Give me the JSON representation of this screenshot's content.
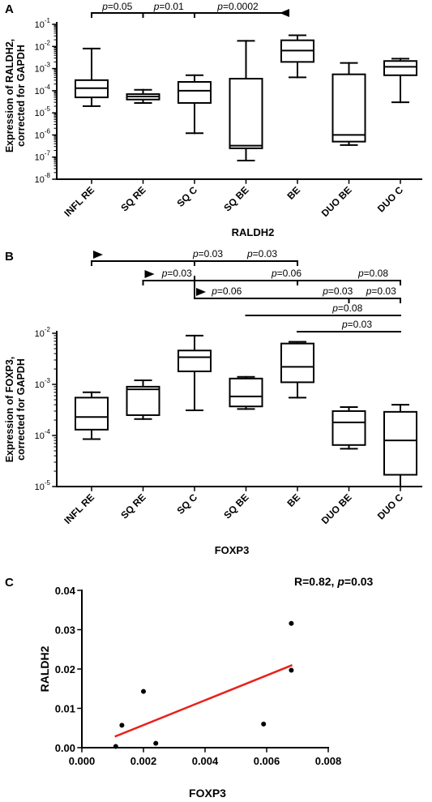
{
  "chart_data": [
    {
      "panel": "A",
      "type": "box",
      "xlabel": "RALDH2",
      "ylabel_line1": "Expression of RALDH2,",
      "ylabel_line2": "corrected for GAPDH",
      "yscale": "log",
      "ylim_exp": [
        -8,
        -1
      ],
      "yticks": [
        {
          "base": "10",
          "exp": "-8"
        },
        {
          "base": "10",
          "exp": "-7"
        },
        {
          "base": "10",
          "exp": "-6"
        },
        {
          "base": "10",
          "exp": "-5"
        },
        {
          "base": "10",
          "exp": "-4"
        },
        {
          "base": "10",
          "exp": "-3"
        },
        {
          "base": "10",
          "exp": "-2"
        },
        {
          "base": "10",
          "exp": "-1"
        }
      ],
      "categories": [
        "INFL RE",
        "SQ RE",
        "SQ C",
        "SQ BE",
        "BE",
        "DUO BE",
        "DUO C"
      ],
      "boxes": [
        {
          "min": 2e-05,
          "q1": 5e-05,
          "median": 0.00013,
          "q3": 0.0003,
          "max": 0.008
        },
        {
          "min": 2.8e-05,
          "q1": 4e-05,
          "median": 5.5e-05,
          "q3": 7e-05,
          "max": 0.00011
        },
        {
          "min": 1.2e-06,
          "q1": 2.8e-05,
          "median": 0.0001,
          "q3": 0.00025,
          "max": 0.0005
        },
        {
          "min": 7e-08,
          "q1": 2.5e-07,
          "median": 3.3e-07,
          "q3": 0.00035,
          "max": 0.018
        },
        {
          "min": 0.0004,
          "q1": 0.002,
          "median": 0.0065,
          "q3": 0.019,
          "max": 0.032
        },
        {
          "min": 3.5e-07,
          "q1": 5e-07,
          "median": 1e-06,
          "q3": 0.00055,
          "max": 0.0018
        },
        {
          "min": 3e-05,
          "q1": 0.0005,
          "median": 0.0012,
          "q3": 0.0022,
          "max": 0.0028
        }
      ],
      "significance": [
        {
          "from": 0,
          "to": 1,
          "label": "=0.05",
          "arrow": false
        },
        {
          "from": 1,
          "to": 2,
          "label": "=0.01",
          "arrow": false
        },
        {
          "from": 2,
          "to": 4,
          "label": "=0.0002",
          "arrow": false
        },
        {
          "from": 4,
          "to": 6,
          "label": "",
          "arrow": true
        }
      ]
    },
    {
      "panel": "B",
      "type": "box",
      "xlabel": "FOXP3",
      "ylabel_line1": "Expression of FOXP3,",
      "ylabel_line2": "corrected for GAPDH",
      "yscale": "log",
      "ylim_exp": [
        -5,
        -2
      ],
      "yticks": [
        {
          "base": "10",
          "exp": "-5"
        },
        {
          "base": "10",
          "exp": "-4"
        },
        {
          "base": "10",
          "exp": "-3"
        },
        {
          "base": "10",
          "exp": "-2"
        }
      ],
      "categories": [
        "INFL RE",
        "SQ RE",
        "SQ C",
        "SQ BE",
        "BE",
        "DUO BE",
        "DUO C"
      ],
      "boxes": [
        {
          "min": 8.5e-05,
          "q1": 0.00013,
          "median": 0.00023,
          "q3": 0.00055,
          "max": 0.0007
        },
        {
          "min": 0.00021,
          "q1": 0.00025,
          "median": 0.0008,
          "q3": 0.0009,
          "max": 0.0012
        },
        {
          "min": 0.00031,
          "q1": 0.0018,
          "median": 0.0034,
          "q3": 0.0046,
          "max": 0.009
        },
        {
          "min": 0.00033,
          "q1": 0.00037,
          "median": 0.00058,
          "q3": 0.0013,
          "max": 0.0014
        },
        {
          "min": 0.00055,
          "q1": 0.0011,
          "median": 0.0022,
          "q3": 0.0063,
          "max": 0.0068
        },
        {
          "min": 5.5e-05,
          "q1": 6.5e-05,
          "median": 0.00018,
          "q3": 0.0003,
          "max": 0.00036
        },
        {
          "min": 1e-05,
          "q1": 1.7e-05,
          "median": 8e-05,
          "q3": 0.00029,
          "max": 0.0004
        }
      ],
      "significance": [
        {
          "from": 0,
          "to": 4,
          "label": "",
          "arrow": true,
          "tick_at": 2
        },
        {
          "from": 2,
          "to": 4,
          "label": "=0.03",
          "arrow": false
        },
        {
          "from": 0,
          "to": 2,
          "label": "=0.03",
          "arrow": false
        },
        {
          "from": 1,
          "to": 6,
          "label": "",
          "arrow": true,
          "tick_at": 4
        },
        {
          "from": 1,
          "to": 2,
          "label": "=0.03",
          "arrow": false
        },
        {
          "from": 2,
          "to": 4,
          "label": "=0.06",
          "arrow": false
        },
        {
          "from": 4,
          "to": 6,
          "label": "=0.08",
          "arrow": false
        },
        {
          "from": 2,
          "to": 6,
          "label": "",
          "arrow": true,
          "tick_at": 5
        },
        {
          "from": 2,
          "to": 3,
          "label": "=0.06",
          "arrow": false
        },
        {
          "from": 4,
          "to": 5,
          "label": "=0.03",
          "arrow": false
        },
        {
          "from": 5,
          "to": 6,
          "label": "=0.03",
          "arrow": false
        },
        {
          "from": 3,
          "to": 6,
          "label": "=0.08",
          "arrow": false
        },
        {
          "from": 4,
          "to": 6,
          "label": "=0.03",
          "arrow": false
        }
      ]
    },
    {
      "panel": "C",
      "type": "scatter",
      "xlabel": "FOXP3",
      "ylabel": "RALDH2",
      "xlim": [
        0,
        0.008
      ],
      "ylim": [
        0,
        0.04
      ],
      "xticks": [
        "0.000",
        "0.002",
        "0.004",
        "0.006",
        "0.008"
      ],
      "yticks": [
        "0.00",
        "0.01",
        "0.02",
        "0.03",
        "0.04"
      ],
      "points": [
        {
          "x": 0.0011,
          "y": 0.0003
        },
        {
          "x": 0.0013,
          "y": 0.0057
        },
        {
          "x": 0.002,
          "y": 0.0143
        },
        {
          "x": 0.0024,
          "y": 0.0011
        },
        {
          "x": 0.0059,
          "y": 0.006
        },
        {
          "x": 0.0068,
          "y": 0.0197
        },
        {
          "x": 0.0068,
          "y": 0.0316
        }
      ],
      "fit_line": {
        "x": [
          0.0011,
          0.0068
        ],
        "y": [
          0.0029,
          0.0209
        ],
        "color": "#e8211d"
      },
      "annotation_r": "R=0.82, ",
      "annotation_p": "=0.03"
    }
  ],
  "panel_labels": [
    "A",
    "B",
    "C"
  ],
  "p_symbol": "p"
}
